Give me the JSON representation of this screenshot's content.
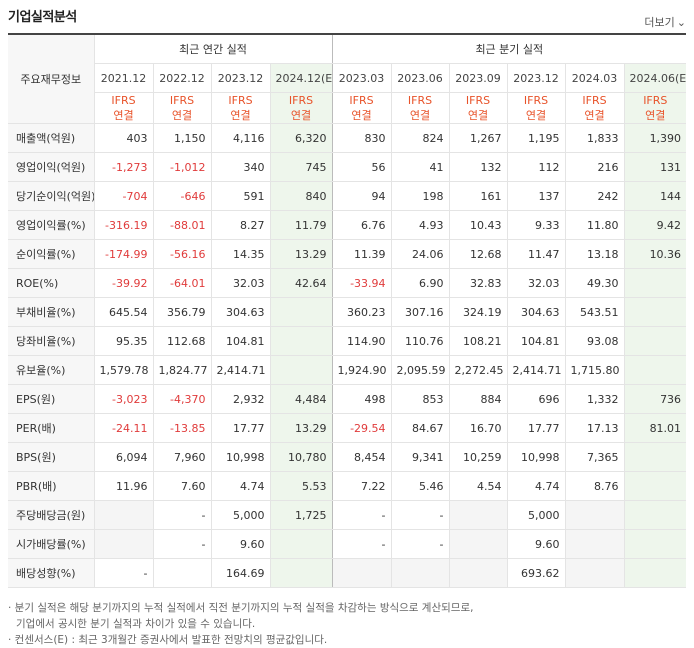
{
  "title": "기업실적분석",
  "more_label": "더보기",
  "more_icon": "chevron-down-icon",
  "row_header_label": "주요재무정보",
  "annual_group": "최근 연간 실적",
  "quarter_group": "최근 분기 실적",
  "ifrs_line1": "IFRS",
  "ifrs_line2": "연결",
  "annual_periods": [
    "2021.12",
    "2022.12",
    "2023.12",
    "2024.12(E)"
  ],
  "quarter_periods": [
    "2023.03",
    "2023.06",
    "2023.09",
    "2023.12",
    "2024.03",
    "2024.06(E)"
  ],
  "rows": [
    {
      "label": "매출액(억원)",
      "annual": [
        "403",
        "1,150",
        "4,116",
        "6,320"
      ],
      "quarter": [
        "830",
        "824",
        "1,267",
        "1,195",
        "1,833",
        "1,390"
      ]
    },
    {
      "label": "영업이익(억원)",
      "annual": [
        "-1,273",
        "-1,012",
        "340",
        "745"
      ],
      "quarter": [
        "56",
        "41",
        "132",
        "112",
        "216",
        "131"
      ]
    },
    {
      "label": "당기순이익(억원)",
      "annual": [
        "-704",
        "-646",
        "591",
        "840"
      ],
      "quarter": [
        "94",
        "198",
        "161",
        "137",
        "242",
        "144"
      ]
    },
    {
      "label": "영업이익률(%)",
      "annual": [
        "-316.19",
        "-88.01",
        "8.27",
        "11.79"
      ],
      "quarter": [
        "6.76",
        "4.93",
        "10.43",
        "9.33",
        "11.80",
        "9.42"
      ]
    },
    {
      "label": "순이익률(%)",
      "annual": [
        "-174.99",
        "-56.16",
        "14.35",
        "13.29"
      ],
      "quarter": [
        "11.39",
        "24.06",
        "12.68",
        "11.47",
        "13.18",
        "10.36"
      ]
    },
    {
      "label": "ROE(%)",
      "annual": [
        "-39.92",
        "-64.01",
        "32.03",
        "42.64"
      ],
      "quarter": [
        "-33.94",
        "6.90",
        "32.83",
        "32.03",
        "49.30",
        ""
      ]
    },
    {
      "label": "부채비율(%)",
      "annual": [
        "645.54",
        "356.79",
        "304.63",
        ""
      ],
      "quarter": [
        "360.23",
        "307.16",
        "324.19",
        "304.63",
        "543.51",
        ""
      ]
    },
    {
      "label": "당좌비율(%)",
      "annual": [
        "95.35",
        "112.68",
        "104.81",
        ""
      ],
      "quarter": [
        "114.90",
        "110.76",
        "108.21",
        "104.81",
        "93.08",
        ""
      ]
    },
    {
      "label": "유보율(%)",
      "annual": [
        "1,579.78",
        "1,824.77",
        "2,414.71",
        ""
      ],
      "quarter": [
        "1,924.90",
        "2,095.59",
        "2,272.45",
        "2,414.71",
        "1,715.80",
        ""
      ]
    },
    {
      "label": "EPS(원)",
      "annual": [
        "-3,023",
        "-4,370",
        "2,932",
        "4,484"
      ],
      "quarter": [
        "498",
        "853",
        "884",
        "696",
        "1,332",
        "736"
      ]
    },
    {
      "label": "PER(배)",
      "annual": [
        "-24.11",
        "-13.85",
        "17.77",
        "13.29"
      ],
      "quarter": [
        "-29.54",
        "84.67",
        "16.70",
        "17.77",
        "17.13",
        "81.01"
      ]
    },
    {
      "label": "BPS(원)",
      "annual": [
        "6,094",
        "7,960",
        "10,998",
        "10,780"
      ],
      "quarter": [
        "8,454",
        "9,341",
        "10,259",
        "10,998",
        "7,365",
        ""
      ]
    },
    {
      "label": "PBR(배)",
      "annual": [
        "11.96",
        "7.60",
        "4.74",
        "5.53"
      ],
      "quarter": [
        "7.22",
        "5.46",
        "4.54",
        "4.74",
        "8.76",
        ""
      ]
    },
    {
      "label": "주당배당금(원)",
      "annual": [
        "",
        "-",
        "5,000",
        "1,725"
      ],
      "quarter": [
        "-",
        "-",
        "",
        "5,000",
        "",
        ""
      ]
    },
    {
      "label": "시가배당률(%)",
      "annual": [
        "",
        "-",
        "9.60",
        ""
      ],
      "quarter": [
        "-",
        "-",
        "",
        "9.60",
        "",
        ""
      ]
    },
    {
      "label": "배당성향(%)",
      "annual": [
        "-",
        "",
        "164.69",
        ""
      ],
      "quarter": [
        "",
        "",
        "",
        "693.62",
        "",
        ""
      ]
    }
  ],
  "notes": [
    "· 분기 실적은 해당 분기까지의 누적 실적에서 직전 분기까지의 누적 실적을 차감하는 방식으로 계산되므로,",
    "기업에서 공시한 분기 실적과 차이가 있을 수 있습니다.",
    "· 컨센서스(E) : 최근 3개월간 증권사에서 발표한 전망치의 평균값입니다."
  ],
  "colors": {
    "negative": "#e03b3b",
    "ifrs": "#e8532a",
    "estimate_bg": "#eef6ec",
    "header_bg": "#f7f7f7"
  }
}
